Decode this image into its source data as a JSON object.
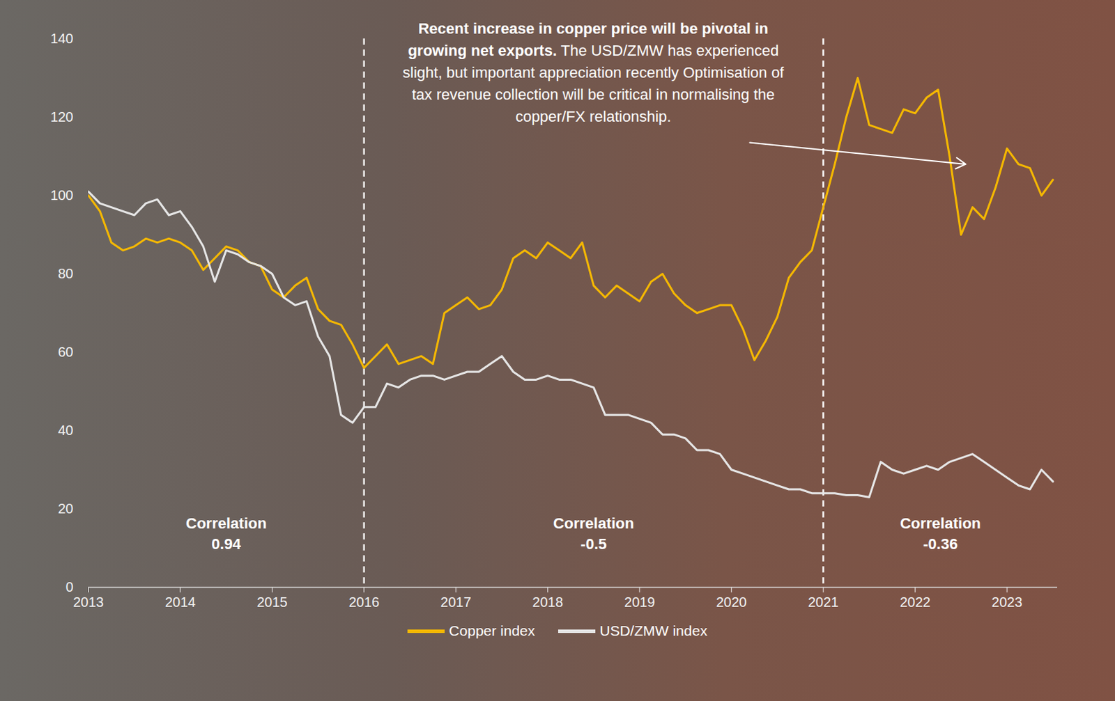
{
  "chart_data": {
    "type": "line",
    "annotation": {
      "bold": "Recent increase in copper price will be pivotal in growing net exports.",
      "text": "The USD/ZMW has experienced slight, but important appreciation recently Optimisation of tax revenue collection will be critical in normalising the copper/FX relationship."
    },
    "periods": [
      {
        "start": 2013,
        "end": 2016,
        "label": "Correlation",
        "correlation": 0.94
      },
      {
        "start": 2016,
        "end": 2021,
        "label": "Correlation",
        "correlation": -0.5
      },
      {
        "start": 2021,
        "end": 2023.55,
        "label": "Correlation",
        "correlation": -0.36
      }
    ],
    "x": [
      2013,
      2013.125,
      2013.25,
      2013.375,
      2013.5,
      2013.625,
      2013.75,
      2013.875,
      2014,
      2014.125,
      2014.25,
      2014.375,
      2014.5,
      2014.625,
      2014.75,
      2014.875,
      2015,
      2015.125,
      2015.25,
      2015.375,
      2015.5,
      2015.625,
      2015.75,
      2015.875,
      2016,
      2016.125,
      2016.25,
      2016.375,
      2016.5,
      2016.625,
      2016.75,
      2016.875,
      2017,
      2017.125,
      2017.25,
      2017.375,
      2017.5,
      2017.625,
      2017.75,
      2017.875,
      2018,
      2018.125,
      2018.25,
      2018.375,
      2018.5,
      2018.625,
      2018.75,
      2018.875,
      2019,
      2019.125,
      2019.25,
      2019.375,
      2019.5,
      2019.625,
      2019.75,
      2019.875,
      2020,
      2020.125,
      2020.25,
      2020.375,
      2020.5,
      2020.625,
      2020.75,
      2020.875,
      2021,
      2021.125,
      2021.25,
      2021.375,
      2021.5,
      2021.625,
      2021.75,
      2021.875,
      2022,
      2022.125,
      2022.25,
      2022.375,
      2022.5,
      2022.625,
      2022.75,
      2022.875,
      2023,
      2023.125,
      2023.25,
      2023.375,
      2023.5
    ],
    "series": [
      {
        "name": "Copper index",
        "color": "#f5b800",
        "values": [
          100,
          96,
          88,
          86,
          87,
          89,
          88,
          89,
          88,
          86,
          81,
          84,
          87,
          86,
          83,
          82,
          76,
          74,
          77,
          79,
          71,
          68,
          67,
          62,
          56,
          59,
          62,
          57,
          58,
          59,
          57,
          70,
          72,
          74,
          71,
          72,
          76,
          84,
          86,
          84,
          88,
          86,
          84,
          88,
          77,
          74,
          77,
          75,
          73,
          78,
          80,
          75,
          72,
          70,
          71,
          72,
          72,
          66,
          58,
          63,
          69,
          79,
          83,
          86,
          97,
          108,
          120,
          130,
          118,
          117,
          116,
          122,
          121,
          125,
          127,
          110,
          90,
          97,
          94,
          102,
          112,
          108,
          107,
          100,
          104
        ]
      },
      {
        "name": "USD/ZMW index",
        "color": "#e6e6e6",
        "values": [
          101,
          98,
          97,
          96,
          95,
          98,
          99,
          95,
          96,
          92,
          87,
          78,
          86,
          85,
          83,
          82,
          80,
          74,
          72,
          73,
          64,
          59,
          44,
          42,
          46,
          46,
          52,
          51,
          53,
          54,
          54,
          53,
          54,
          55,
          55,
          57,
          59,
          55,
          53,
          53,
          54,
          53,
          53,
          52,
          51,
          44,
          44,
          44,
          43,
          42,
          39,
          39,
          38,
          35,
          35,
          34,
          30,
          29,
          28,
          27,
          26,
          25,
          25,
          24,
          24,
          24,
          23.5,
          23.5,
          23,
          32,
          30,
          29,
          30,
          31,
          30,
          32,
          33,
          34,
          32,
          30,
          28,
          26,
          25,
          30,
          27
        ]
      }
    ],
    "xlim": [
      2013,
      2023.55
    ],
    "xticks": [
      2013,
      2014,
      2015,
      2016,
      2017,
      2018,
      2019,
      2020,
      2021,
      2022,
      2023
    ],
    "ylim": [
      0,
      140
    ],
    "yticks": [
      0,
      20,
      40,
      60,
      80,
      100,
      120,
      140
    ],
    "grid": false,
    "legend": "bottom"
  }
}
